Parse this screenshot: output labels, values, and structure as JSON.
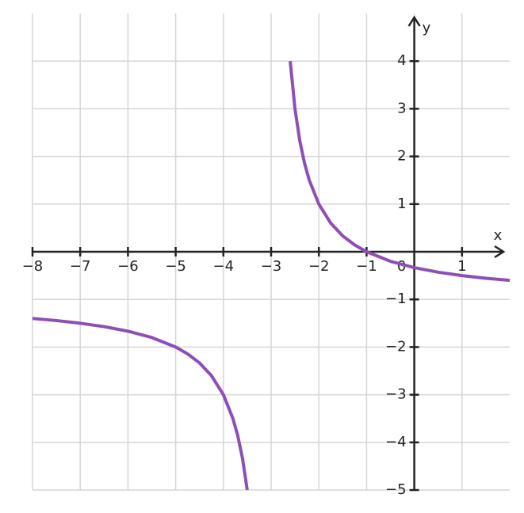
{
  "chart_data": {
    "type": "line",
    "x": [
      -8,
      -7.5,
      -7,
      -6.5,
      -6,
      -5.5,
      -5,
      -4.75,
      -4.5,
      -4.25,
      -4,
      -3.8,
      -3.7,
      -3.6,
      -3.5,
      -3,
      -2.6,
      -2.5,
      -2.4,
      -2.3,
      -2.2,
      -2,
      -1.75,
      -1.5,
      -1.25,
      -1,
      -0.5,
      0,
      0.5,
      1,
      1.5,
      2
    ],
    "series": [
      {
        "color": "#8e4fb5",
        "values": [
          -1.4,
          -1.444,
          -1.5,
          -1.571,
          -1.667,
          -1.8,
          -2,
          -2.143,
          -2.333,
          -2.6,
          -3,
          -3.5,
          -3.857,
          -4.333,
          -5,
          null,
          4,
          3,
          2.333,
          1.857,
          1.5,
          1,
          0.6,
          0.333,
          0.143,
          0,
          -0.2,
          -0.333,
          -0.429,
          -0.5,
          -0.556,
          -0.6
        ]
      }
    ],
    "xlabel": "x",
    "ylabel": "y",
    "xlim": [
      -8,
      2
    ],
    "ylim": [
      -5,
      5
    ],
    "xticks": [
      {
        "value": -8,
        "label": "−8"
      },
      {
        "value": -7,
        "label": "−7"
      },
      {
        "value": -6,
        "label": "−6"
      },
      {
        "value": -5,
        "label": "−5"
      },
      {
        "value": -4,
        "label": "−4"
      },
      {
        "value": -3,
        "label": "−3"
      },
      {
        "value": -2,
        "label": "−2"
      },
      {
        "value": -1,
        "label": "−1"
      },
      0,
      1
    ],
    "yticks": [
      {
        "value": -5,
        "label": "−5"
      },
      {
        "value": -4,
        "label": "−4"
      },
      {
        "value": -3,
        "label": "−3"
      },
      {
        "value": -2,
        "label": "−2"
      },
      {
        "value": -1,
        "label": "−1"
      },
      1,
      2,
      3,
      4
    ],
    "grid": true
  }
}
